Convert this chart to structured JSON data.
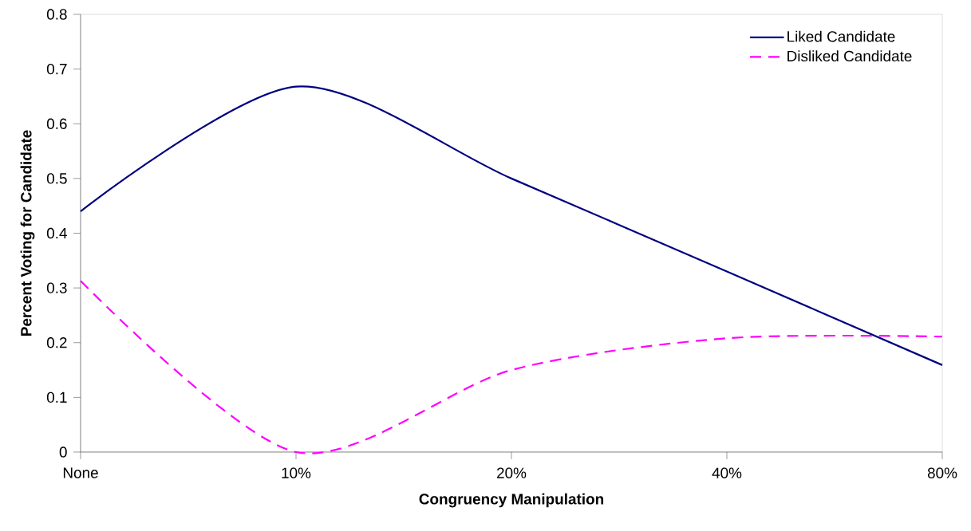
{
  "chart_data": {
    "type": "line",
    "xlabel": "Congruency Manipulation",
    "ylabel": "Percent Voting for Candidate",
    "categories": [
      "None",
      "10%",
      "20%",
      "40%",
      "80%"
    ],
    "series": [
      {
        "name": "Liked Candidate",
        "color": "#000080",
        "line_style": "solid",
        "values": [
          0.44,
          0.668,
          0.5,
          0.33,
          0.159
        ]
      },
      {
        "name": "Disliked Candidate",
        "color": "#ff00ff",
        "line_style": "dashed",
        "values": [
          0.313,
          0.0,
          0.15,
          0.208,
          0.211
        ]
      }
    ],
    "ylim": [
      0,
      0.8
    ],
    "yticks": [
      0,
      0.1,
      0.2,
      0.3,
      0.4,
      0.5,
      0.6,
      0.7,
      0.8
    ],
    "legend": "top right"
  }
}
